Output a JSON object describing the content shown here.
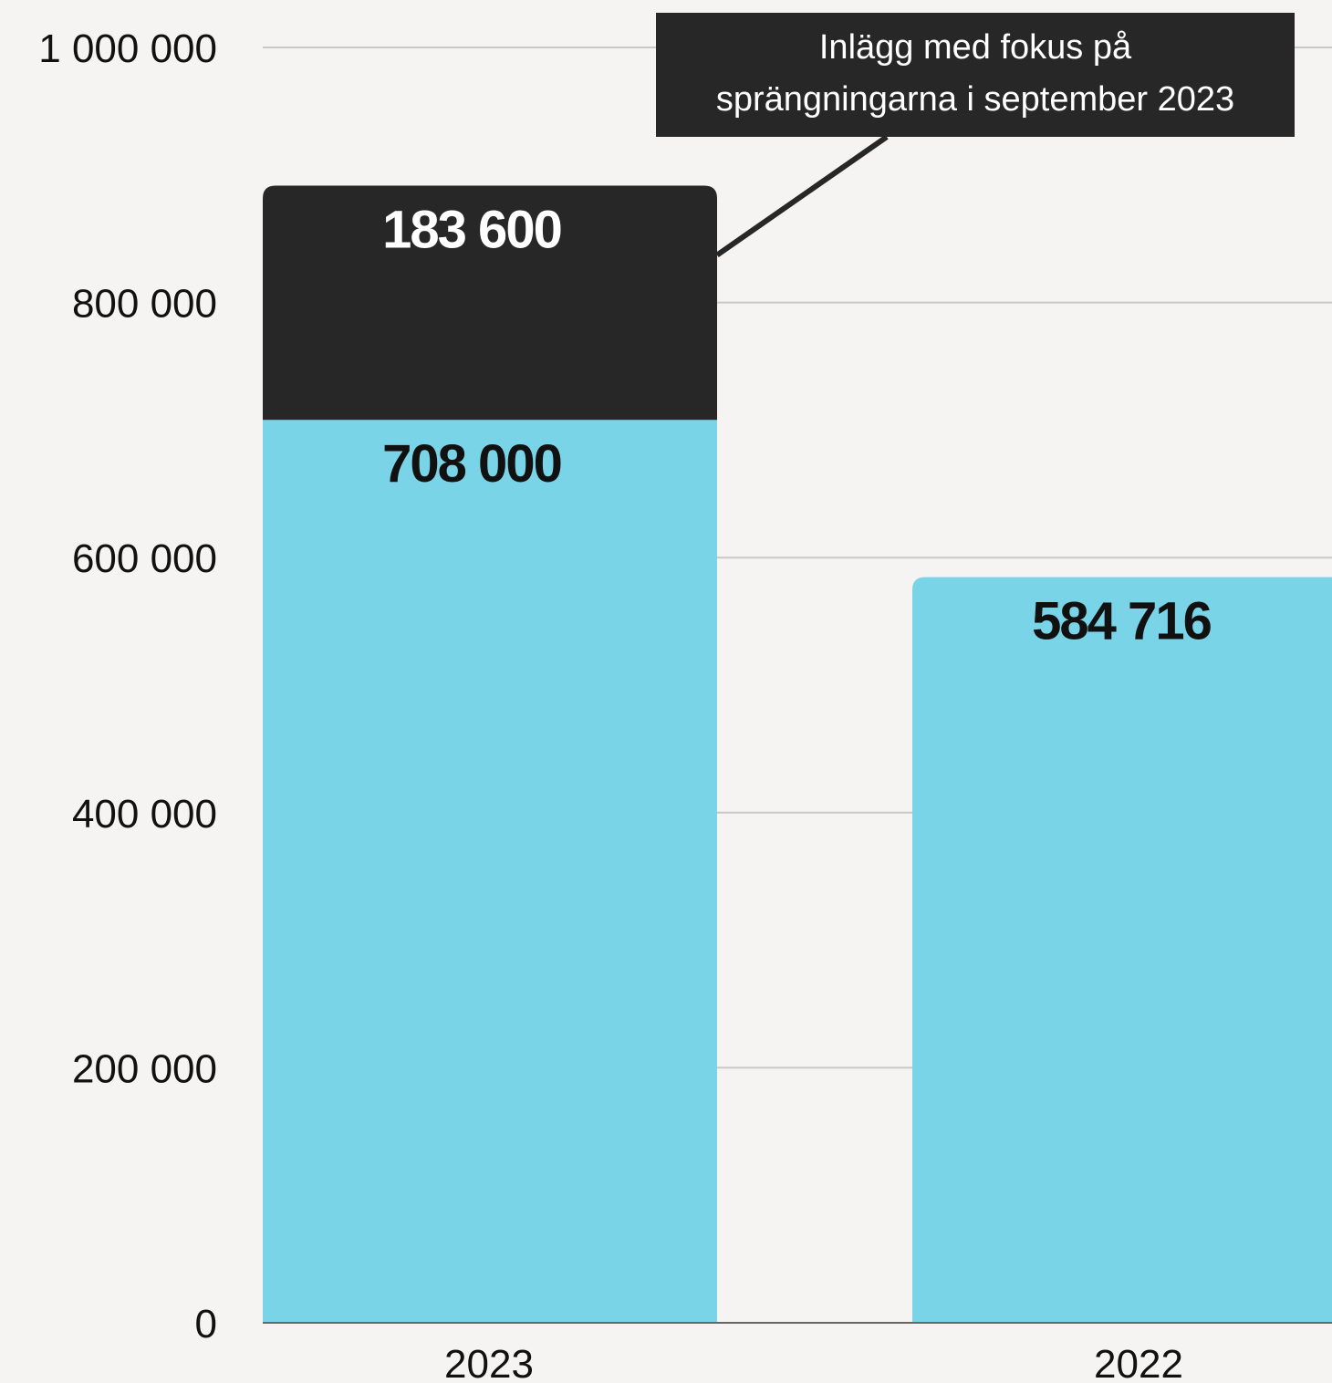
{
  "chart_data": {
    "type": "bar",
    "stacked": true,
    "categories": [
      "2023",
      "2022"
    ],
    "series": [
      {
        "values": [
          708000,
          584716
        ],
        "color": "#78d4e6",
        "labels": [
          "708 000",
          "584 716"
        ],
        "label_color": "#111111"
      },
      {
        "values": [
          183600,
          0
        ],
        "color": "#272727",
        "labels": [
          "183 600",
          ""
        ],
        "label_color": "#ffffff"
      }
    ],
    "ylim": [
      0,
      1000000
    ],
    "yticks": [
      0,
      200000,
      400000,
      600000,
      800000,
      1000000
    ],
    "ytick_labels": [
      "0",
      "200 000",
      "400 000",
      "600 000",
      "800 000",
      "1 000 000"
    ],
    "grid": true,
    "annotation": {
      "lines": [
        "Inlägg med fokus på",
        "sprängningarna i september 2023"
      ],
      "target_category": "2023",
      "target_series": 1
    },
    "colors": {
      "background": "#f5f4f2",
      "grid": "#c8c8c8",
      "axis": "#666666",
      "annotation_bg": "#272727"
    }
  }
}
